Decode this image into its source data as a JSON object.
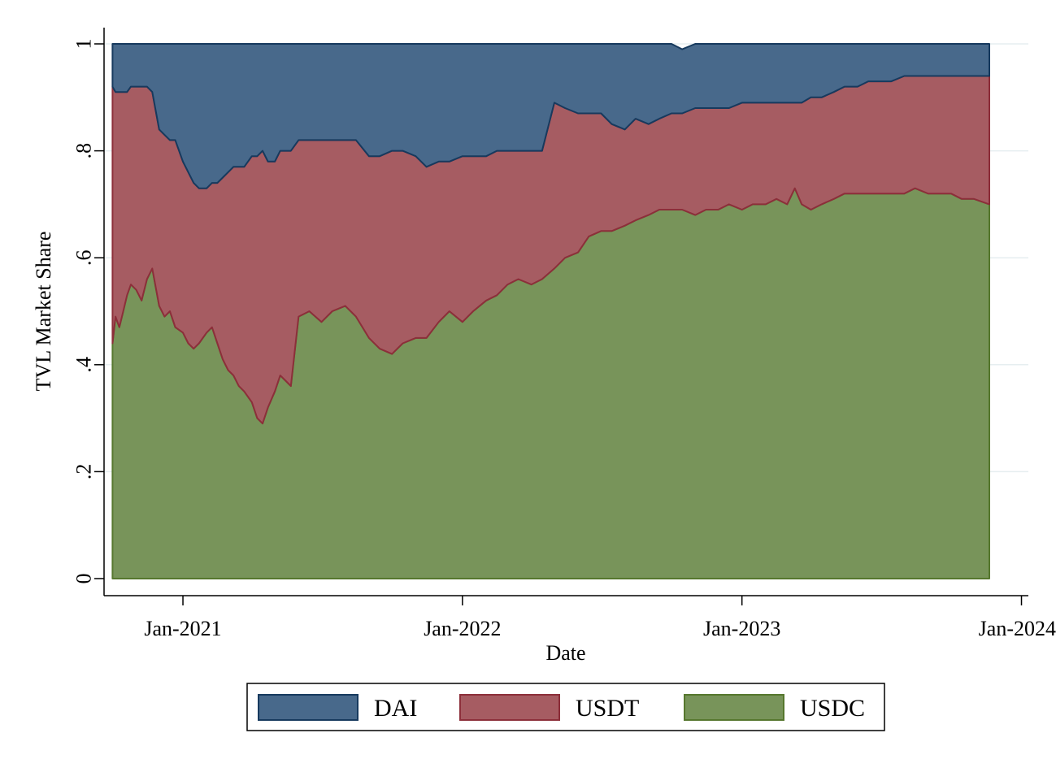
{
  "chart_data": {
    "type": "area",
    "stacked": true,
    "xlabel": "Date",
    "ylabel": "TVL Market Share",
    "xlim": [
      "2020-09-20",
      "2024-01-10"
    ],
    "ylim": [
      0,
      1
    ],
    "x_ticks": [
      {
        "date": "2021-01-01",
        "label": "Jan-2021"
      },
      {
        "date": "2022-01-01",
        "label": "Jan-2022"
      },
      {
        "date": "2023-01-01",
        "label": "Jan-2023"
      },
      {
        "date": "2024-01-01",
        "label": "Jan-2024"
      }
    ],
    "y_ticks": [
      {
        "value": 0,
        "label": "0"
      },
      {
        "value": 0.2,
        "label": ".2"
      },
      {
        "value": 0.4,
        "label": ".4"
      },
      {
        "value": 0.6,
        "label": ".6"
      },
      {
        "value": 0.8,
        "label": ".8"
      },
      {
        "value": 1,
        "label": "1"
      }
    ],
    "grid": true,
    "legend_position": "bottom",
    "x": [
      "2020-10-01",
      "2020-10-05",
      "2020-10-10",
      "2020-10-15",
      "2020-10-20",
      "2020-10-25",
      "2020-11-01",
      "2020-11-08",
      "2020-11-15",
      "2020-11-22",
      "2020-12-01",
      "2020-12-08",
      "2020-12-15",
      "2020-12-22",
      "2021-01-01",
      "2021-01-08",
      "2021-01-15",
      "2021-01-22",
      "2021-02-01",
      "2021-02-08",
      "2021-02-15",
      "2021-02-22",
      "2021-03-01",
      "2021-03-08",
      "2021-03-15",
      "2021-03-22",
      "2021-04-01",
      "2021-04-08",
      "2021-04-15",
      "2021-04-22",
      "2021-05-01",
      "2021-05-08",
      "2021-05-15",
      "2021-05-22",
      "2021-06-01",
      "2021-06-15",
      "2021-07-01",
      "2021-07-15",
      "2021-08-01",
      "2021-08-15",
      "2021-09-01",
      "2021-09-15",
      "2021-10-01",
      "2021-10-15",
      "2021-11-01",
      "2021-11-15",
      "2021-12-01",
      "2021-12-15",
      "2022-01-01",
      "2022-01-15",
      "2022-02-01",
      "2022-02-15",
      "2022-03-01",
      "2022-03-15",
      "2022-04-01",
      "2022-04-15",
      "2022-05-01",
      "2022-05-15",
      "2022-06-01",
      "2022-06-15",
      "2022-07-01",
      "2022-07-15",
      "2022-08-01",
      "2022-08-15",
      "2022-09-01",
      "2022-09-15",
      "2022-10-01",
      "2022-10-15",
      "2022-11-01",
      "2022-11-15",
      "2022-12-01",
      "2022-12-15",
      "2023-01-01",
      "2023-01-15",
      "2023-02-01",
      "2023-02-15",
      "2023-03-01",
      "2023-03-11",
      "2023-03-20",
      "2023-04-01",
      "2023-04-15",
      "2023-05-01",
      "2023-05-15",
      "2023-06-01",
      "2023-06-15",
      "2023-07-01",
      "2023-07-15",
      "2023-08-01",
      "2023-08-15",
      "2023-09-01",
      "2023-09-15",
      "2023-10-01",
      "2023-10-15",
      "2023-10-31",
      "2023-11-20"
    ],
    "series": [
      {
        "name": "USDC",
        "color": "#78945a",
        "line_color": "#56772e",
        "values": [
          0.44,
          0.49,
          0.47,
          0.5,
          0.53,
          0.55,
          0.54,
          0.52,
          0.56,
          0.58,
          0.51,
          0.49,
          0.5,
          0.47,
          0.46,
          0.44,
          0.43,
          0.44,
          0.46,
          0.47,
          0.44,
          0.41,
          0.39,
          0.38,
          0.36,
          0.35,
          0.33,
          0.3,
          0.29,
          0.32,
          0.35,
          0.38,
          0.37,
          0.36,
          0.49,
          0.5,
          0.48,
          0.5,
          0.51,
          0.49,
          0.45,
          0.43,
          0.42,
          0.44,
          0.45,
          0.45,
          0.48,
          0.5,
          0.48,
          0.5,
          0.52,
          0.53,
          0.55,
          0.56,
          0.55,
          0.56,
          0.58,
          0.6,
          0.61,
          0.64,
          0.65,
          0.65,
          0.66,
          0.67,
          0.68,
          0.69,
          0.69,
          0.69,
          0.68,
          0.69,
          0.69,
          0.7,
          0.69,
          0.7,
          0.7,
          0.71,
          0.7,
          0.73,
          0.7,
          0.69,
          0.7,
          0.71,
          0.72,
          0.72,
          0.72,
          0.72,
          0.72,
          0.72,
          0.73,
          0.72,
          0.72,
          0.72,
          0.71,
          0.71,
          0.7
        ]
      },
      {
        "name": "USDT",
        "color": "#a65c62",
        "line_color": "#8c2f3a",
        "values": [
          0.48,
          0.42,
          0.44,
          0.41,
          0.38,
          0.37,
          0.38,
          0.4,
          0.36,
          0.33,
          0.33,
          0.34,
          0.32,
          0.35,
          0.32,
          0.32,
          0.31,
          0.29,
          0.27,
          0.27,
          0.3,
          0.34,
          0.37,
          0.39,
          0.41,
          0.42,
          0.46,
          0.49,
          0.51,
          0.46,
          0.43,
          0.42,
          0.43,
          0.44,
          0.33,
          0.32,
          0.34,
          0.32,
          0.31,
          0.33,
          0.34,
          0.36,
          0.38,
          0.36,
          0.34,
          0.32,
          0.3,
          0.28,
          0.31,
          0.29,
          0.27,
          0.27,
          0.25,
          0.24,
          0.25,
          0.24,
          0.31,
          0.28,
          0.26,
          0.23,
          0.22,
          0.2,
          0.18,
          0.19,
          0.17,
          0.17,
          0.18,
          0.18,
          0.2,
          0.19,
          0.19,
          0.18,
          0.2,
          0.19,
          0.19,
          0.18,
          0.19,
          0.16,
          0.19,
          0.21,
          0.2,
          0.2,
          0.2,
          0.2,
          0.21,
          0.21,
          0.21,
          0.22,
          0.21,
          0.22,
          0.22,
          0.22,
          0.23,
          0.23,
          0.24
        ]
      },
      {
        "name": "DAI",
        "color": "#48698b",
        "line_color": "#173a5e",
        "values": [
          0.08,
          0.09,
          0.09,
          0.09,
          0.09,
          0.08,
          0.08,
          0.08,
          0.08,
          0.09,
          0.16,
          0.17,
          0.18,
          0.18,
          0.22,
          0.24,
          0.26,
          0.27,
          0.27,
          0.26,
          0.26,
          0.25,
          0.24,
          0.23,
          0.23,
          0.23,
          0.21,
          0.21,
          0.2,
          0.22,
          0.22,
          0.2,
          0.2,
          0.2,
          0.18,
          0.18,
          0.18,
          0.18,
          0.18,
          0.18,
          0.21,
          0.21,
          0.2,
          0.2,
          0.21,
          0.23,
          0.22,
          0.22,
          0.21,
          0.21,
          0.21,
          0.2,
          0.2,
          0.2,
          0.2,
          0.2,
          0.11,
          0.12,
          0.13,
          0.13,
          0.13,
          0.15,
          0.16,
          0.14,
          0.15,
          0.14,
          0.13,
          0.12,
          0.12,
          0.12,
          0.12,
          0.12,
          0.11,
          0.11,
          0.11,
          0.11,
          0.11,
          0.11,
          0.11,
          0.1,
          0.1,
          0.09,
          0.08,
          0.08,
          0.07,
          0.07,
          0.07,
          0.06,
          0.06,
          0.06,
          0.06,
          0.06,
          0.06,
          0.06,
          0.06
        ]
      }
    ],
    "legend_order": [
      "DAI",
      "USDT",
      "USDC"
    ]
  }
}
